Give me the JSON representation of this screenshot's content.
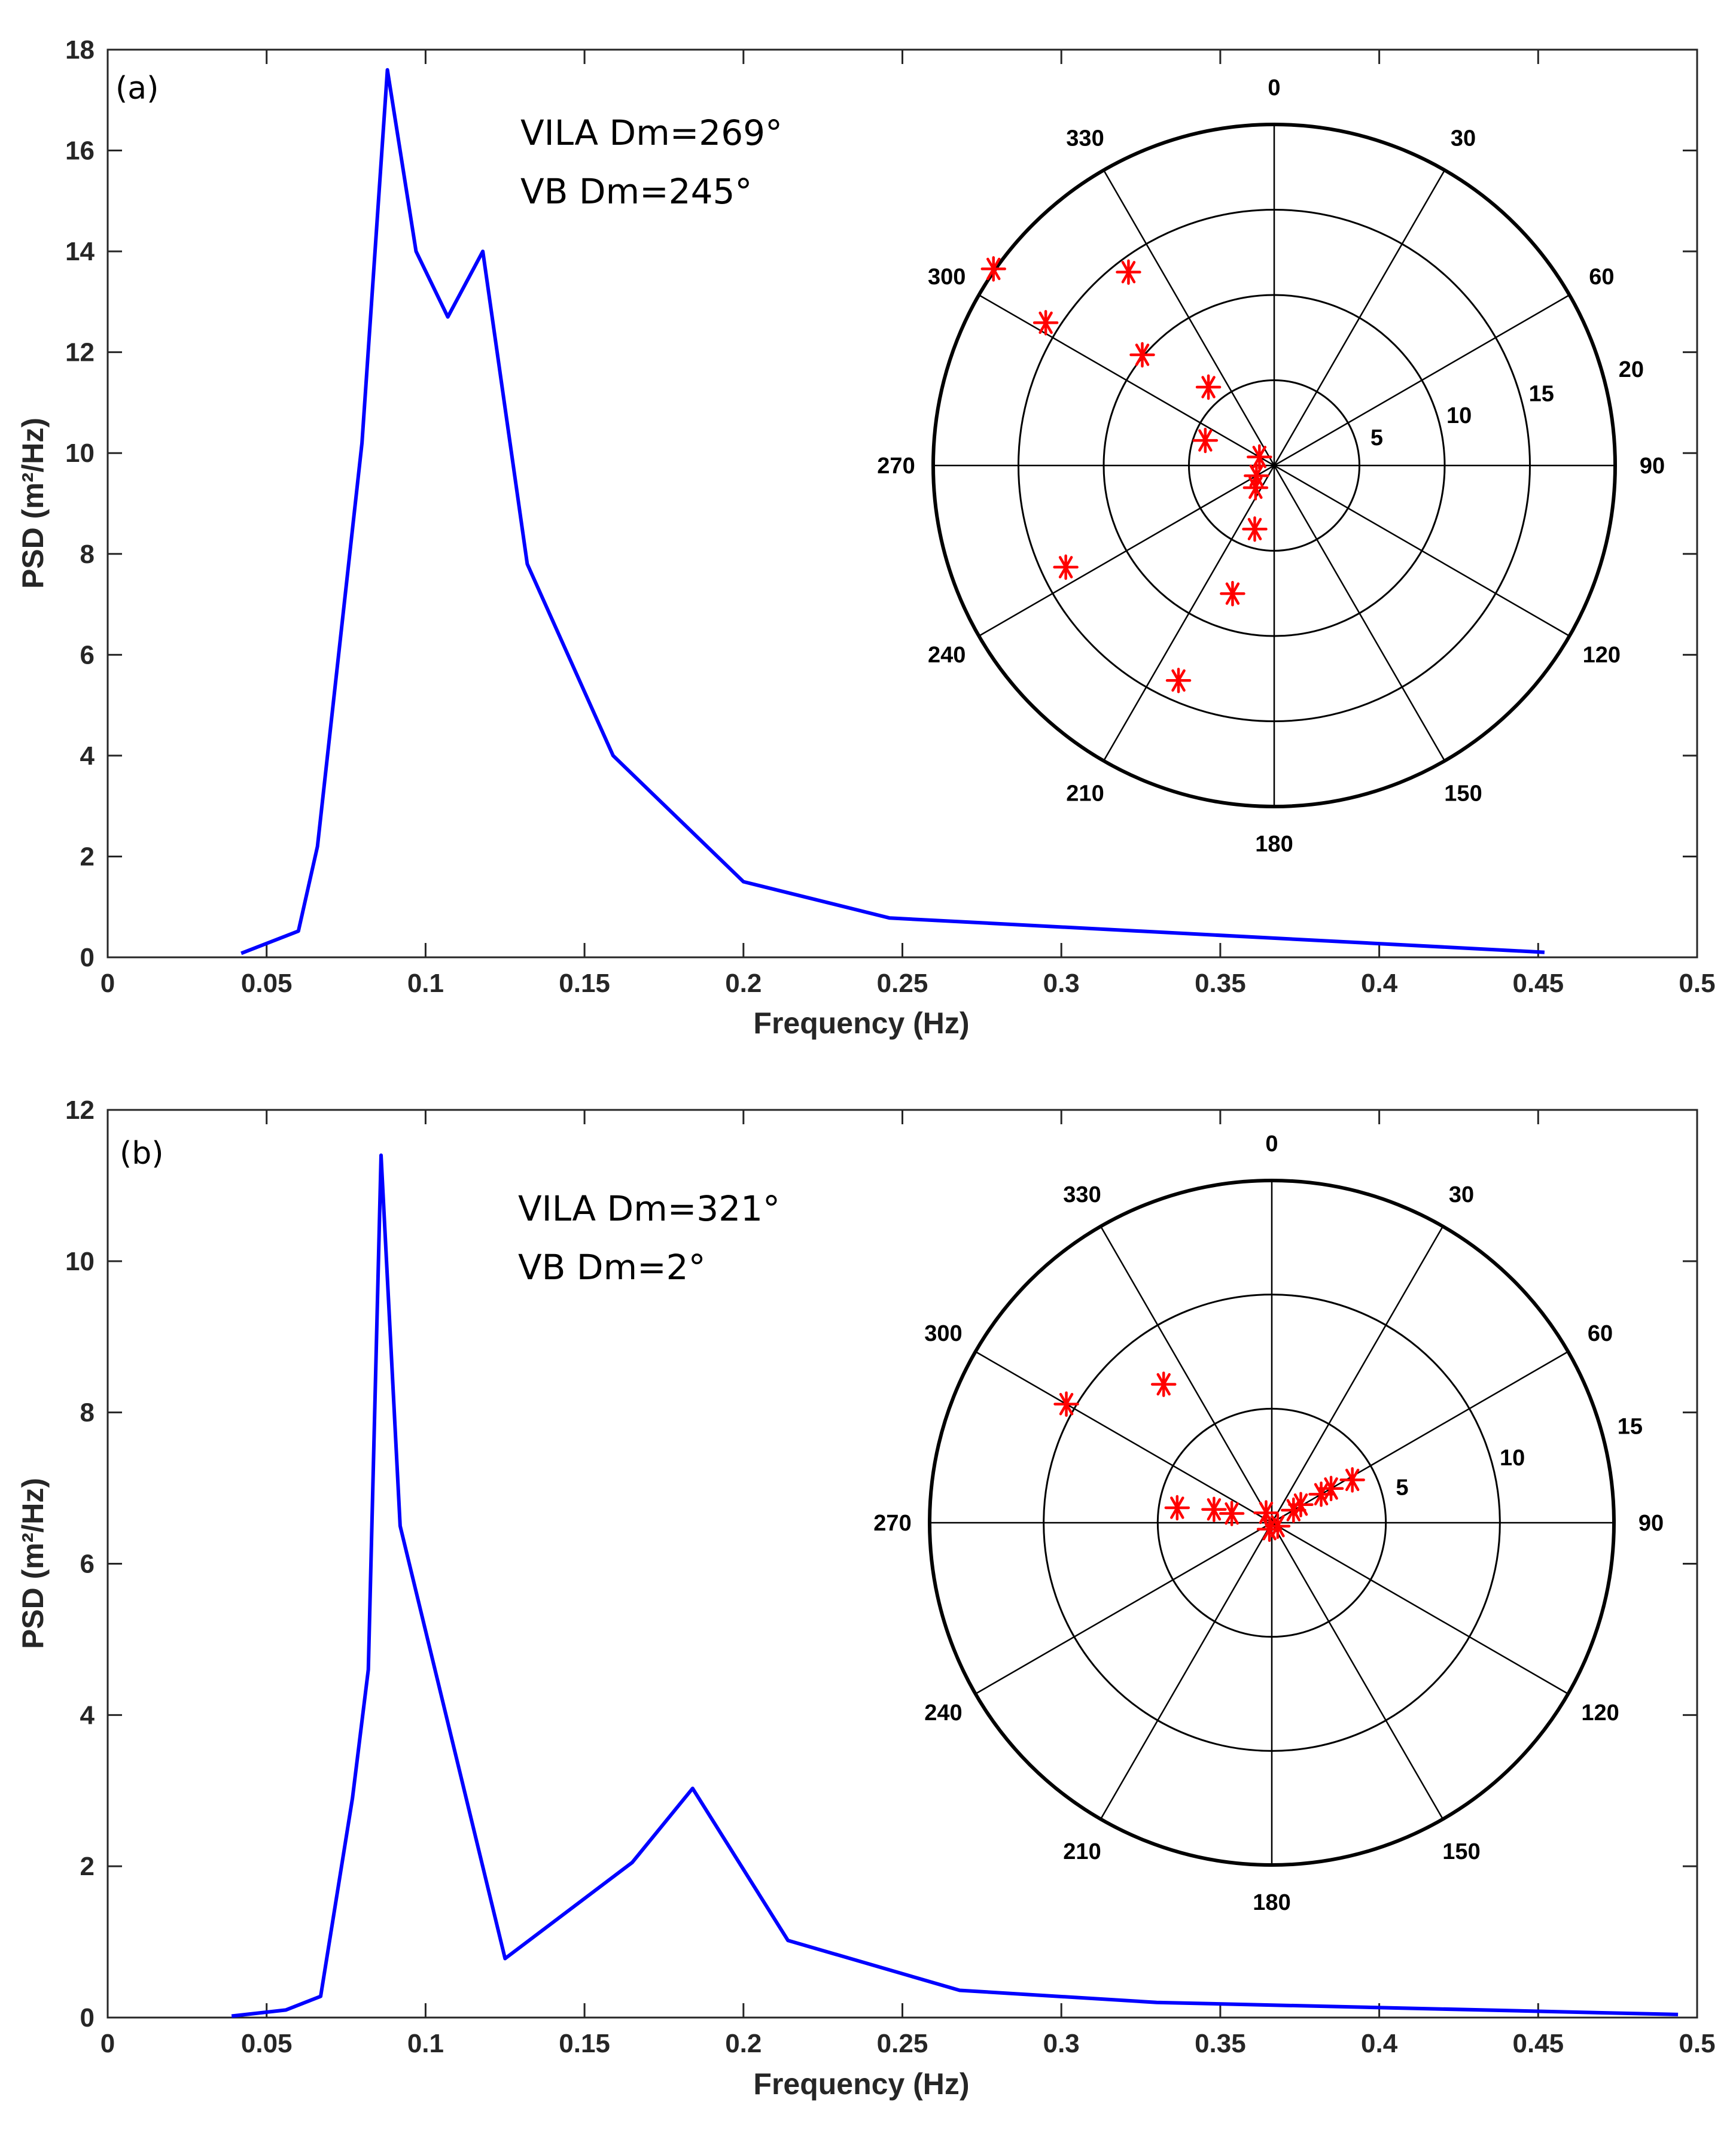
{
  "chart_data": [
    {
      "type": "line",
      "panel_label": "(a)",
      "xlabel": "Frequency (Hz)",
      "ylabel": "PSD (m²/Hz)",
      "xlim": [
        0,
        0.5
      ],
      "ylim": [
        0,
        18
      ],
      "xticks": [
        0,
        0.05,
        0.1,
        0.15,
        0.2,
        0.25,
        0.3,
        0.35,
        0.4,
        0.45,
        0.5
      ],
      "xtick_labels": [
        "0",
        "0.05",
        "0.1",
        "0.15",
        "0.2",
        "0.25",
        "0.3",
        "0.35",
        "0.4",
        "0.45",
        "0.5"
      ],
      "yticks": [
        0,
        2,
        4,
        6,
        8,
        10,
        12,
        14,
        16,
        18
      ],
      "ytick_labels": [
        "0",
        "2",
        "4",
        "6",
        "8",
        "10",
        "12",
        "14",
        "16",
        "18"
      ],
      "series": [
        {
          "name": "PSD",
          "color": "#0000ff",
          "x": [
            0.042,
            0.06,
            0.066,
            0.08,
            0.088,
            0.097,
            0.107,
            0.118,
            0.132,
            0.159,
            0.2,
            0.246,
            0.452
          ],
          "y": [
            0.08,
            0.52,
            2.2,
            10.2,
            17.6,
            14.0,
            12.7,
            14.0,
            7.8,
            4.0,
            1.5,
            0.78,
            0.1
          ]
        }
      ],
      "annotations": [
        "VILA Dm=269°",
        "VB Dm=245°"
      ],
      "polar": {
        "angle_ticks": [
          0,
          30,
          60,
          90,
          120,
          150,
          180,
          210,
          240,
          270,
          300,
          330
        ],
        "angle_tick_labels": [
          "0",
          "30",
          "60",
          "90",
          "120",
          "150",
          "180",
          "210",
          "240",
          "270",
          "300",
          "330"
        ],
        "rmax": 20,
        "r_ticks": [
          5,
          10,
          15,
          20
        ],
        "r_tick_labels": [
          "5",
          "10",
          "15",
          "20"
        ],
        "marker_color": "#ff0000",
        "points": [
          {
            "theta": 305,
            "r": 20.1
          },
          {
            "theta": 302,
            "r": 15.8
          },
          {
            "theta": 323,
            "r": 14.2
          },
          {
            "theta": 310,
            "r": 10.1
          },
          {
            "theta": 320,
            "r": 6.0
          },
          {
            "theta": 290,
            "r": 4.3
          },
          {
            "theta": 300,
            "r": 1.0
          },
          {
            "theta": 240,
            "r": 1.2
          },
          {
            "theta": 220,
            "r": 1.7
          },
          {
            "theta": 197,
            "r": 3.9
          },
          {
            "theta": 198,
            "r": 7.9
          },
          {
            "theta": 204,
            "r": 13.8
          },
          {
            "theta": 244,
            "r": 13.6
          }
        ]
      }
    },
    {
      "type": "line",
      "panel_label": "(b)",
      "xlabel": "Frequency (Hz)",
      "ylabel": "PSD (m²/Hz)",
      "xlim": [
        0,
        0.5
      ],
      "ylim": [
        0,
        12
      ],
      "xticks": [
        0,
        0.05,
        0.1,
        0.15,
        0.2,
        0.25,
        0.3,
        0.35,
        0.4,
        0.45,
        0.5
      ],
      "xtick_labels": [
        "0",
        "0.05",
        "0.1",
        "0.15",
        "0.2",
        "0.25",
        "0.3",
        "0.35",
        "0.4",
        "0.45",
        "0.5"
      ],
      "yticks": [
        0,
        2,
        4,
        6,
        8,
        10,
        12
      ],
      "ytick_labels": [
        "0",
        "2",
        "4",
        "6",
        "8",
        "10",
        "12"
      ],
      "series": [
        {
          "name": "PSD",
          "color": "#0000ff",
          "x": [
            0.039,
            0.056,
            0.067,
            0.077,
            0.082,
            0.086,
            0.092,
            0.125,
            0.165,
            0.184,
            0.214,
            0.268,
            0.33,
            0.494
          ],
          "y": [
            0.02,
            0.1,
            0.28,
            2.9,
            4.6,
            11.4,
            6.5,
            0.78,
            2.05,
            3.03,
            1.02,
            0.36,
            0.2,
            0.04
          ]
        }
      ],
      "annotations": [
        "VILA Dm=321°",
        "VB Dm=2°"
      ],
      "polar": {
        "angle_ticks": [
          0,
          30,
          60,
          90,
          120,
          150,
          180,
          210,
          240,
          270,
          300,
          330
        ],
        "angle_tick_labels": [
          "0",
          "30",
          "60",
          "90",
          "120",
          "150",
          "180",
          "210",
          "240",
          "270",
          "300",
          "330"
        ],
        "rmax": 15,
        "r_ticks": [
          5,
          10,
          15
        ],
        "r_tick_labels": [
          "5",
          "10",
          "15"
        ],
        "marker_color": "#ff0000",
        "points": [
          {
            "theta": 300,
            "r": 10.4
          },
          {
            "theta": 322,
            "r": 7.7
          },
          {
            "theta": 279,
            "r": 4.2
          },
          {
            "theta": 283,
            "r": 2.6
          },
          {
            "theta": 283,
            "r": 1.8
          },
          {
            "theta": 330,
            "r": 0.5
          },
          {
            "theta": 200,
            "r": 0.3
          },
          {
            "theta": 120,
            "r": 0.3
          },
          {
            "theta": 60,
            "r": 1.1
          },
          {
            "theta": 58,
            "r": 1.5
          },
          {
            "theta": 60,
            "r": 2.5
          },
          {
            "theta": 60,
            "r": 3.0
          },
          {
            "theta": 62,
            "r": 4.0
          }
        ]
      }
    }
  ]
}
